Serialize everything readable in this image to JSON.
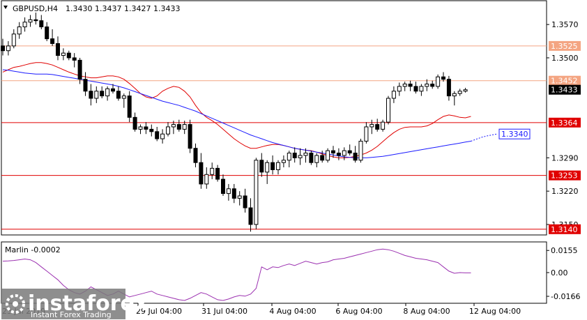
{
  "chart_data": {
    "type": "candlestick",
    "symbol_title": "GBPUSD,H4",
    "ohlc_header": "1.3430 1.3437 1.3427 1.3433",
    "price_ticks": [
      "1.3570",
      "1.3500",
      "1.3290",
      "1.3220",
      "1.3150"
    ],
    "levels": [
      {
        "value": 1.3525,
        "label": "1.3525",
        "color": "#f4a582",
        "box": "#f4a582",
        "text_color": "#ffffff"
      },
      {
        "value": 1.3452,
        "label": "1.3452",
        "color": "#f4a582",
        "box": "#f4a582",
        "text_color": "#ffffff"
      },
      {
        "value": 1.3364,
        "label": "1.3364",
        "color": "#e00000",
        "box": "#e00000",
        "text_color": "#ffffff"
      },
      {
        "value": 1.3253,
        "label": "1.3253",
        "color": "#e00000",
        "box": "#e00000",
        "text_color": "#ffffff"
      },
      {
        "value": 1.314,
        "label": "1.3140",
        "color": "#e00000",
        "box": "#e00000",
        "text_color": "#ffffff"
      }
    ],
    "current_price": {
      "value": 1.3433,
      "label": "1.3433"
    },
    "target_label": {
      "value": 1.334,
      "label": "1.3340"
    },
    "x_labels": [
      "29 Jul 04:00",
      "31 Jul 04:00",
      "4 Aug 04:00",
      "6 Aug 04:00",
      "8 Aug 04:00",
      "12 Aug 04:00"
    ],
    "x_label_partial": "23 Jul 2019",
    "y_range": [
      1.3128,
      1.362
    ],
    "candles": [
      [
        1.3525,
        1.354,
        1.3505,
        1.3515
      ],
      [
        1.3515,
        1.3535,
        1.3505,
        1.3525
      ],
      [
        1.3525,
        1.356,
        1.352,
        1.355
      ],
      [
        1.355,
        1.3575,
        1.354,
        1.3565
      ],
      [
        1.3565,
        1.3585,
        1.3555,
        1.3575
      ],
      [
        1.3575,
        1.359,
        1.3565,
        1.358
      ],
      [
        1.358,
        1.3595,
        1.357,
        1.3578
      ],
      [
        1.3578,
        1.359,
        1.356,
        1.3565
      ],
      [
        1.3565,
        1.3575,
        1.3535,
        1.354
      ],
      [
        1.354,
        1.356,
        1.3525,
        1.353
      ],
      [
        1.353,
        1.3545,
        1.3495,
        1.3505
      ],
      [
        1.3505,
        1.352,
        1.3495,
        1.351
      ],
      [
        1.351,
        1.3515,
        1.3495,
        1.35
      ],
      [
        1.35,
        1.351,
        1.348,
        1.3495
      ],
      [
        1.3495,
        1.35,
        1.3445,
        1.3455
      ],
      [
        1.3455,
        1.347,
        1.342,
        1.343
      ],
      [
        1.343,
        1.3445,
        1.34,
        1.3415
      ],
      [
        1.3415,
        1.344,
        1.3405,
        1.343
      ],
      [
        1.343,
        1.344,
        1.3415,
        1.342
      ],
      [
        1.342,
        1.344,
        1.341,
        1.3435
      ],
      [
        1.3435,
        1.3445,
        1.3425,
        1.343
      ],
      [
        1.343,
        1.344,
        1.341,
        1.3415
      ],
      [
        1.3415,
        1.3425,
        1.3395,
        1.342
      ],
      [
        1.342,
        1.343,
        1.3365,
        1.3375
      ],
      [
        1.3375,
        1.3385,
        1.3345,
        1.335
      ],
      [
        1.335,
        1.336,
        1.334,
        1.3355
      ],
      [
        1.3355,
        1.3365,
        1.334,
        1.335
      ],
      [
        1.335,
        1.336,
        1.3335,
        1.3345
      ],
      [
        1.3345,
        1.3355,
        1.3325,
        1.333
      ],
      [
        1.333,
        1.335,
        1.332,
        1.334
      ],
      [
        1.334,
        1.3365,
        1.3335,
        1.3355
      ],
      [
        1.3355,
        1.3368,
        1.334,
        1.336
      ],
      [
        1.336,
        1.337,
        1.3345,
        1.335
      ],
      [
        1.335,
        1.3368,
        1.334,
        1.336
      ],
      [
        1.336,
        1.337,
        1.33,
        1.331
      ],
      [
        1.331,
        1.332,
        1.327,
        1.328
      ],
      [
        1.328,
        1.33,
        1.3225,
        1.3235
      ],
      [
        1.3235,
        1.327,
        1.3225,
        1.3255
      ],
      [
        1.3255,
        1.328,
        1.3245,
        1.3268
      ],
      [
        1.3268,
        1.3275,
        1.324,
        1.3245
      ],
      [
        1.3245,
        1.3255,
        1.321,
        1.3215
      ],
      [
        1.3215,
        1.3235,
        1.32,
        1.3225
      ],
      [
        1.3225,
        1.3235,
        1.3195,
        1.3205
      ],
      [
        1.3205,
        1.322,
        1.319,
        1.321
      ],
      [
        1.321,
        1.3225,
        1.3175,
        1.3185
      ],
      [
        1.3185,
        1.3205,
        1.3135,
        1.315
      ],
      [
        1.315,
        1.329,
        1.314,
        1.3285
      ],
      [
        1.3285,
        1.33,
        1.325,
        1.326
      ],
      [
        1.326,
        1.3285,
        1.3235,
        1.328
      ],
      [
        1.328,
        1.3295,
        1.3255,
        1.3265
      ],
      [
        1.3265,
        1.3285,
        1.3255,
        1.328
      ],
      [
        1.328,
        1.3295,
        1.327,
        1.3285
      ],
      [
        1.3285,
        1.3305,
        1.327,
        1.33
      ],
      [
        1.33,
        1.3312,
        1.328,
        1.329
      ],
      [
        1.329,
        1.331,
        1.3275,
        1.3295
      ],
      [
        1.3295,
        1.331,
        1.328,
        1.33
      ],
      [
        1.33,
        1.3305,
        1.3275,
        1.328
      ],
      [
        1.328,
        1.33,
        1.327,
        1.3295
      ],
      [
        1.3295,
        1.3305,
        1.328,
        1.3285
      ],
      [
        1.3285,
        1.331,
        1.328,
        1.3305
      ],
      [
        1.3305,
        1.3315,
        1.329,
        1.33
      ],
      [
        1.33,
        1.331,
        1.3285,
        1.3295
      ],
      [
        1.3295,
        1.3312,
        1.3285,
        1.3305
      ],
      [
        1.3305,
        1.3318,
        1.3295,
        1.33
      ],
      [
        1.33,
        1.3315,
        1.328,
        1.3285
      ],
      [
        1.3285,
        1.333,
        1.328,
        1.3325
      ],
      [
        1.3325,
        1.3365,
        1.332,
        1.3355
      ],
      [
        1.3355,
        1.337,
        1.334,
        1.336
      ],
      [
        1.336,
        1.3372,
        1.3345,
        1.335
      ],
      [
        1.335,
        1.337,
        1.3345,
        1.3365
      ],
      [
        1.3365,
        1.342,
        1.336,
        1.3415
      ],
      [
        1.3415,
        1.344,
        1.3405,
        1.343
      ],
      [
        1.343,
        1.3448,
        1.342,
        1.344
      ],
      [
        1.344,
        1.345,
        1.343,
        1.3445
      ],
      [
        1.3445,
        1.3452,
        1.343,
        1.344
      ],
      [
        1.344,
        1.345,
        1.3425,
        1.343
      ],
      [
        1.343,
        1.3445,
        1.342,
        1.344
      ],
      [
        1.344,
        1.3455,
        1.343,
        1.3445
      ],
      [
        1.3445,
        1.3452,
        1.3435,
        1.344
      ],
      [
        1.344,
        1.3465,
        1.3435,
        1.346
      ],
      [
        1.346,
        1.347,
        1.345,
        1.3455
      ],
      [
        1.3455,
        1.3462,
        1.341,
        1.342
      ],
      [
        1.342,
        1.343,
        1.34,
        1.3425
      ],
      [
        1.3425,
        1.3435,
        1.342,
        1.343
      ],
      [
        1.343,
        1.3437,
        1.3427,
        1.3433
      ]
    ],
    "ma_red": [
      1.347,
      1.3475,
      1.348,
      1.3482,
      1.3485,
      1.3488,
      1.349,
      1.349,
      1.3488,
      1.3485,
      1.348,
      1.3475,
      1.347,
      1.3466,
      1.3462,
      1.346,
      1.3458,
      1.3458,
      1.346,
      1.3462,
      1.3462,
      1.346,
      1.3455,
      1.3446,
      1.3436,
      1.3425,
      1.3418,
      1.3415,
      1.342,
      1.343,
      1.3436,
      1.344,
      1.3438,
      1.343,
      1.3418,
      1.34,
      1.3385,
      1.3375,
      1.3368,
      1.336,
      1.335,
      1.334,
      1.333,
      1.3322,
      1.3315,
      1.331,
      1.331,
      1.3313,
      1.3316,
      1.3318,
      1.3318,
      1.3316,
      1.3313,
      1.331,
      1.3308,
      1.3306,
      1.3305,
      1.3302,
      1.3298,
      1.3295,
      1.3292,
      1.329,
      1.329,
      1.3291,
      1.3293,
      1.3296,
      1.33,
      1.3306,
      1.3314,
      1.3324,
      1.3334,
      1.3343,
      1.335,
      1.3354,
      1.3355,
      1.3355,
      1.3355,
      1.3357,
      1.3362,
      1.337,
      1.3377,
      1.338,
      1.3378,
      1.3375,
      1.3374,
      1.3377
    ],
    "ma_blue": [
      1.3475,
      1.3474,
      1.3472,
      1.347,
      1.3468,
      1.3467,
      1.3466,
      1.3466,
      1.3466,
      1.3465,
      1.3463,
      1.3461,
      1.3459,
      1.3457,
      1.3455,
      1.3453,
      1.3451,
      1.3449,
      1.3447,
      1.3445,
      1.3443,
      1.344,
      1.3437,
      1.3433,
      1.3429,
      1.3425,
      1.3421,
      1.3417,
      1.3413,
      1.3409,
      1.3406,
      1.3403,
      1.34,
      1.3396,
      1.3392,
      1.3388,
      1.3383,
      1.3378,
      1.3373,
      1.3368,
      1.3363,
      1.3358,
      1.3353,
      1.3348,
      1.3343,
      1.3338,
      1.3334,
      1.333,
      1.3326,
      1.3322,
      1.3319,
      1.3316,
      1.3313,
      1.331,
      1.3308,
      1.3306,
      1.3304,
      1.3302,
      1.33,
      1.3298,
      1.3296,
      1.3294,
      1.3292,
      1.3291,
      1.329,
      1.329,
      1.329,
      1.3291,
      1.3292,
      1.3293,
      1.3295,
      1.3297,
      1.3299,
      1.3301,
      1.3303,
      1.3305,
      1.3307,
      1.3309,
      1.3311,
      1.3313,
      1.3315,
      1.3317,
      1.3319,
      1.3321,
      1.3323,
      1.3325
    ],
    "ma_blue_forecast": [
      1.3325,
      1.3329,
      1.3333,
      1.3336,
      1.3338,
      1.334
    ],
    "indicator": {
      "label": "Marlin -0.0002",
      "ticks": [
        "0.0155",
        "0.00",
        "-0.0166"
      ],
      "y_range": [
        -0.02,
        0.02
      ],
      "values": [
        0.008,
        0.0082,
        0.0085,
        0.009,
        0.0095,
        0.009,
        0.007,
        0.004,
        0.001,
        -0.002,
        -0.005,
        -0.009,
        -0.012,
        -0.014,
        -0.015,
        -0.013,
        -0.01,
        -0.012,
        -0.014,
        -0.016,
        -0.015,
        -0.013,
        -0.015,
        -0.017,
        -0.016,
        -0.015,
        -0.014,
        -0.013,
        -0.015,
        -0.016,
        -0.017,
        -0.018,
        -0.019,
        -0.0195,
        -0.018,
        -0.016,
        -0.014,
        -0.015,
        -0.017,
        -0.019,
        -0.0195,
        -0.0185,
        -0.017,
        -0.016,
        -0.0165,
        -0.015,
        -0.011,
        0.004,
        0.002,
        0.004,
        0.0035,
        0.005,
        0.006,
        0.005,
        0.0065,
        0.008,
        0.007,
        0.006,
        0.007,
        0.0075,
        0.009,
        0.0095,
        0.01,
        0.011,
        0.012,
        0.013,
        0.014,
        0.015,
        0.016,
        0.0165,
        0.016,
        0.015,
        0.0135,
        0.012,
        0.011,
        0.01,
        0.0095,
        0.009,
        0.008,
        0.007,
        0.004,
        0.001,
        -0.0005,
        0.0,
        -0.0002,
        -0.0002
      ],
      "color": "#9b30b0"
    },
    "colors": {
      "candle": "#000000",
      "ma_red": "#e00000",
      "ma_blue": "#1a1aff",
      "axis": "#000000"
    }
  },
  "watermark": {
    "brand": "instaforex",
    "tagline": "Instant Forex Trading"
  }
}
